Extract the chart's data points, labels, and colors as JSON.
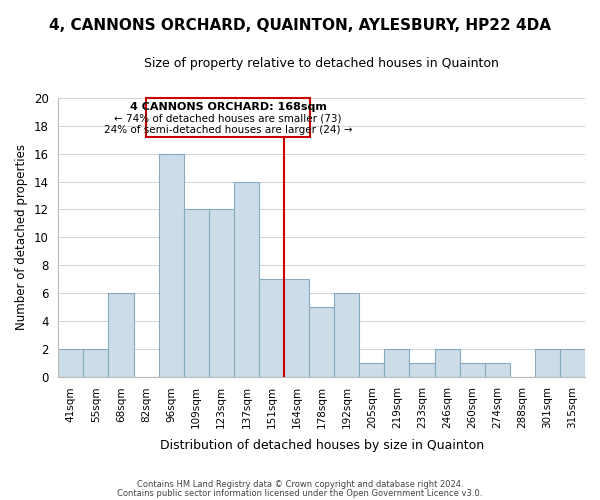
{
  "title": "4, CANNONS ORCHARD, QUAINTON, AYLESBURY, HP22 4DA",
  "subtitle": "Size of property relative to detached houses in Quainton",
  "xlabel": "Distribution of detached houses by size in Quainton",
  "ylabel": "Number of detached properties",
  "bar_labels": [
    "41sqm",
    "55sqm",
    "68sqm",
    "82sqm",
    "96sqm",
    "109sqm",
    "123sqm",
    "137sqm",
    "151sqm",
    "164sqm",
    "178sqm",
    "192sqm",
    "205sqm",
    "219sqm",
    "233sqm",
    "246sqm",
    "260sqm",
    "274sqm",
    "288sqm",
    "301sqm",
    "315sqm"
  ],
  "bar_values": [
    2,
    2,
    6,
    0,
    16,
    12,
    12,
    14,
    7,
    7,
    5,
    6,
    1,
    2,
    1,
    2,
    1,
    1,
    0,
    2,
    2
  ],
  "bar_color": "#ccdce8",
  "bar_edge_color": "#88aac0",
  "ylim": [
    0,
    20
  ],
  "yticks": [
    0,
    2,
    4,
    6,
    8,
    10,
    12,
    14,
    16,
    18,
    20
  ],
  "property_line_x": 8.5,
  "property_line_color": "#cc0000",
  "annotation_title": "4 CANNONS ORCHARD: 168sqm",
  "annotation_line1": "← 74% of detached houses are smaller (73)",
  "annotation_line2": "24% of semi-detached houses are larger (24) →",
  "annotation_box_color": "#ffffff",
  "annotation_box_edge": "#cc0000",
  "footer1": "Contains HM Land Registry data © Crown copyright and database right 2024.",
  "footer2": "Contains public sector information licensed under the Open Government Licence v3.0.",
  "background_color": "#ffffff",
  "grid_color": "#c8d4de"
}
